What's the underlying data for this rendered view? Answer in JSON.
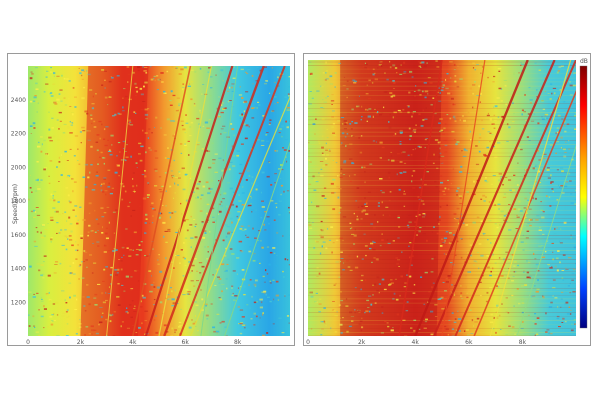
{
  "chart_data": [
    {
      "type": "heatmap",
      "title": "",
      "xlabel": "",
      "ylabel": "Speed(r/rpm)",
      "x_ticks": [
        "0",
        "2k",
        "4k",
        "6k",
        "8k"
      ],
      "y_ticks": [
        "2400",
        "2200",
        "2000",
        "1800",
        "1600",
        "1400",
        "1200"
      ],
      "xlim": [
        0,
        10000
      ],
      "ylim": [
        1000,
        2600
      ],
      "colormap": [
        "#000080",
        "#0000ff",
        "#00ffff",
        "#ffff00",
        "#ff0000",
        "#800000"
      ],
      "colorbar": false
    },
    {
      "type": "heatmap",
      "title": "",
      "xlabel": "",
      "ylabel": "",
      "x_ticks": [
        "0",
        "2k",
        "4k",
        "6k",
        "8k"
      ],
      "xlim": [
        0,
        10000
      ],
      "ylim": [
        1000,
        2600
      ],
      "colormap": [
        "#000080",
        "#0000ff",
        "#00ffff",
        "#ffff00",
        "#ff0000",
        "#800000"
      ],
      "colorbar": true,
      "colorbar_label": "dB",
      "colorbar_ticks": [
        "",
        "",
        "",
        "",
        "",
        ""
      ]
    }
  ]
}
